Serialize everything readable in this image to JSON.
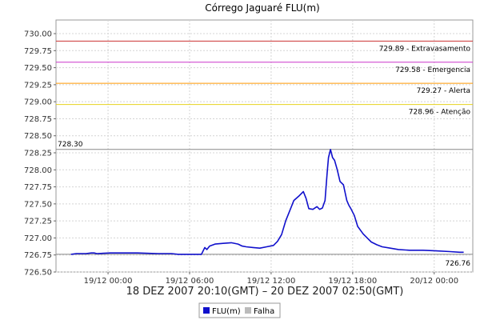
{
  "chart_data": {
    "type": "line",
    "title": "Córrego Jaguaré FLU(m)",
    "xlabel": "18 DEZ 2007 20:10(GMT) – 20 DEZ 2007 02:50(GMT)",
    "ylabel": "",
    "x_unit": "hours after 18 DEZ 2007 20:10 GMT",
    "xlim": [
      0,
      30.67
    ],
    "ylim": [
      726.5,
      730.2
    ],
    "grid": true,
    "y_ticks": [
      "726.50",
      "726.75",
      "727.00",
      "727.25",
      "727.50",
      "727.75",
      "728.00",
      "728.25",
      "728.50",
      "728.75",
      "729.00",
      "729.25",
      "729.50",
      "729.75",
      "730.00"
    ],
    "x_ticks": [
      {
        "label": "19/12 00:00",
        "x": 3.83
      },
      {
        "label": "19/12 06:00",
        "x": 9.83
      },
      {
        "label": "19/12 12:00",
        "x": 15.83
      },
      {
        "label": "19/12 18:00",
        "x": 21.83
      },
      {
        "label": "20/12 00:00",
        "x": 27.83
      }
    ],
    "thresholds": [
      {
        "value": 729.89,
        "label": "729.89 - Extravasamento",
        "color": "#cc3333"
      },
      {
        "value": 729.58,
        "label": "729.58 - Emergencia",
        "color": "#cc33cc"
      },
      {
        "value": 729.27,
        "label": "729.27 - Alerta",
        "color": "#ff9900"
      },
      {
        "value": 728.96,
        "label": "728.96 - Atenção",
        "color": "#e6d21e"
      }
    ],
    "max_line": {
      "value": 728.3,
      "label": "728.30",
      "color": "#888888"
    },
    "min_line": {
      "value": 726.76,
      "label": "726.76",
      "color": "#888888"
    },
    "series": [
      {
        "name": "FLU(m)",
        "color": "#1010cc",
        "x": [
          1.1,
          1.5,
          2.2,
          2.6,
          2.8,
          3.0,
          4.0,
          5.0,
          6.0,
          7.5,
          8.5,
          9.0,
          9.5,
          9.85,
          10.3,
          10.7,
          10.95,
          11.1,
          11.3,
          11.7,
          12.3,
          12.9,
          13.4,
          13.7,
          14.0,
          14.5,
          15.0,
          15.5,
          16.0,
          16.3,
          16.6,
          16.9,
          17.2,
          17.5,
          17.9,
          18.2,
          18.4,
          18.6,
          18.9,
          19.2,
          19.4,
          19.6,
          19.8,
          19.95,
          20.05,
          20.2,
          20.35,
          20.5,
          20.7,
          20.9,
          21.15,
          21.4,
          21.55,
          21.7,
          21.95,
          22.2,
          22.6,
          22.9,
          23.2,
          23.6,
          24.0,
          24.6,
          25.2,
          26.0,
          27.0,
          28.0,
          29.0,
          29.7,
          30.0
        ],
        "y": [
          726.76,
          726.77,
          726.77,
          726.78,
          726.78,
          726.77,
          726.78,
          726.78,
          726.78,
          726.77,
          726.77,
          726.76,
          726.76,
          726.76,
          726.76,
          726.76,
          726.86,
          726.83,
          726.88,
          726.91,
          726.92,
          726.93,
          726.91,
          726.88,
          726.87,
          726.86,
          726.85,
          726.87,
          726.89,
          726.95,
          727.05,
          727.25,
          727.4,
          727.55,
          727.62,
          727.68,
          727.58,
          727.43,
          727.42,
          727.46,
          727.42,
          727.44,
          727.55,
          727.95,
          728.18,
          728.3,
          728.18,
          728.14,
          728.0,
          727.83,
          727.78,
          727.55,
          727.48,
          727.43,
          727.33,
          727.17,
          727.06,
          727.0,
          726.94,
          726.9,
          726.87,
          726.85,
          726.83,
          726.82,
          726.82,
          726.81,
          726.8,
          726.79,
          726.79
        ]
      },
      {
        "name": "Falha",
        "color": "#bbbbbb",
        "x": [],
        "y": []
      }
    ]
  }
}
